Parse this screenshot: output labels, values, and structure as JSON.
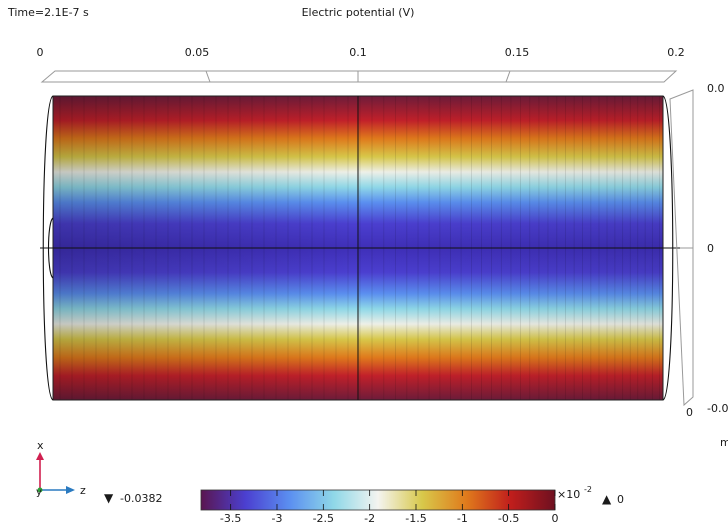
{
  "header": {
    "time_label": "Time=2.1E-7 s",
    "plot_title": "Electric potential (V)"
  },
  "axes": {
    "z_ticks": [
      "0",
      "0.05",
      "0.1",
      "0.15",
      "0.2"
    ],
    "r_ticks_right": [
      "0.0",
      "0",
      "-0.0"
    ],
    "r_axis_unit_fragment": "m"
  },
  "triad": {
    "x_label": "x",
    "y_label": "y",
    "z_label": "z"
  },
  "legend": {
    "min_marker": "▼",
    "min_value": "-0.0382",
    "max_marker": "▲",
    "max_value": "0",
    "exponent_label": "×10",
    "exponent_power": "-2",
    "tick_labels": [
      "-3.5",
      "-3",
      "-2.5",
      "-2",
      "-1.5",
      "-1",
      "-0.5",
      "0"
    ],
    "colormap": [
      "#5a1650",
      "#4b3fd0",
      "#5b8ff0",
      "#8fd8e8",
      "#f4f4f0",
      "#d8c84a",
      "#e07a1c",
      "#c01e1c",
      "#6e1020"
    ]
  }
}
